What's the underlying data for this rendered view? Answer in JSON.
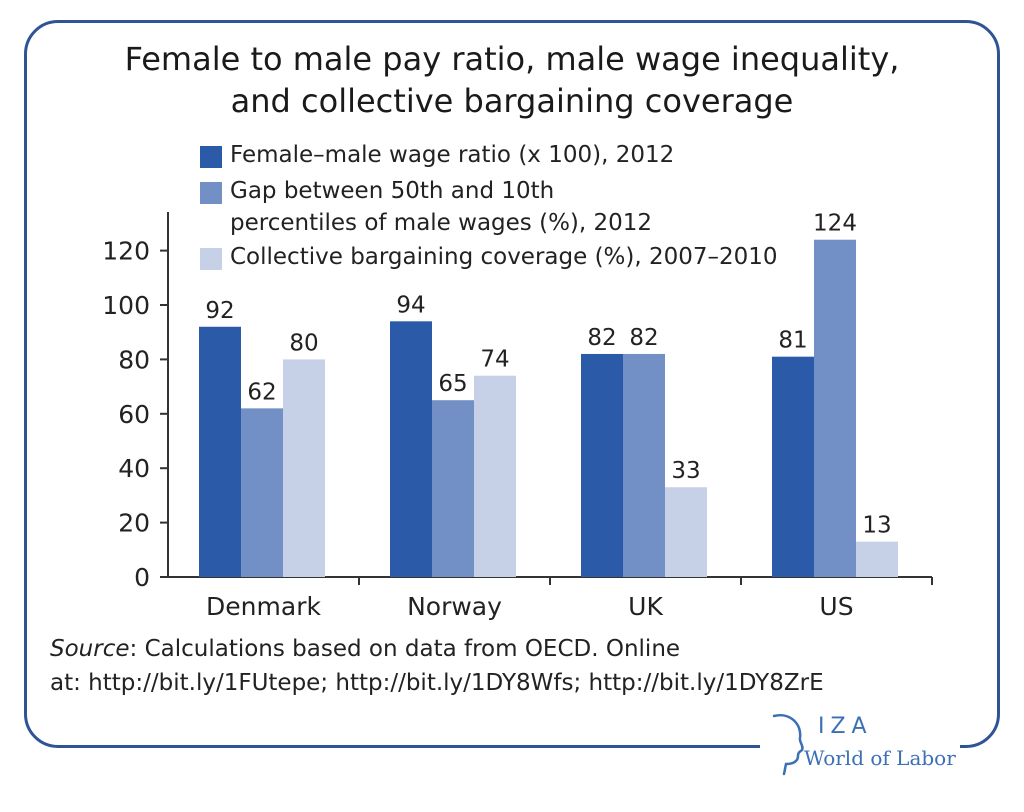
{
  "title_line1": "Female to male pay ratio, male wage inequality,",
  "title_line2": "and collective bargaining coverage",
  "source": {
    "label": "Source",
    "line1_rest": ": Calculations based on data from OECD. Online",
    "line2": "at: http://bit.ly/1FUtepe; http://bit.ly/1DY8Wfs; http://bit.ly/1DY8ZrE"
  },
  "logo": {
    "iza": "IZA",
    "wol": "World of Labor"
  },
  "colors": {
    "frame": "#2e5496"
  },
  "chart_data": {
    "type": "bar",
    "categories": [
      "Denmark",
      "Norway",
      "UK",
      "US"
    ],
    "series": [
      {
        "name": "Female–male wage ratio (x 100), 2012",
        "name_line1": "Female–male wage ratio (x 100), 2012",
        "name_line2": "",
        "color": "#2b5aa8",
        "values": [
          92,
          94,
          82,
          81
        ]
      },
      {
        "name": "Gap between 50th and 10th percentiles of male wages (%), 2012",
        "name_line1": "Gap between 50th and 10th",
        "name_line2": "percentiles of male wages (%), 2012",
        "color": "#7390c6",
        "values": [
          62,
          65,
          82,
          124
        ]
      },
      {
        "name": "Collective bargaining coverage (%), 2007–2010",
        "name_line1": "Collective bargaining coverage (%), 2007–2010",
        "name_line2": "",
        "color": "#c6d0e6",
        "values": [
          80,
          74,
          33,
          13
        ]
      }
    ],
    "yticks": [
      0,
      20,
      40,
      60,
      80,
      100,
      120
    ],
    "ylim": [
      0,
      135
    ],
    "data_labels": true,
    "grid": false,
    "legend": "top-inside"
  }
}
